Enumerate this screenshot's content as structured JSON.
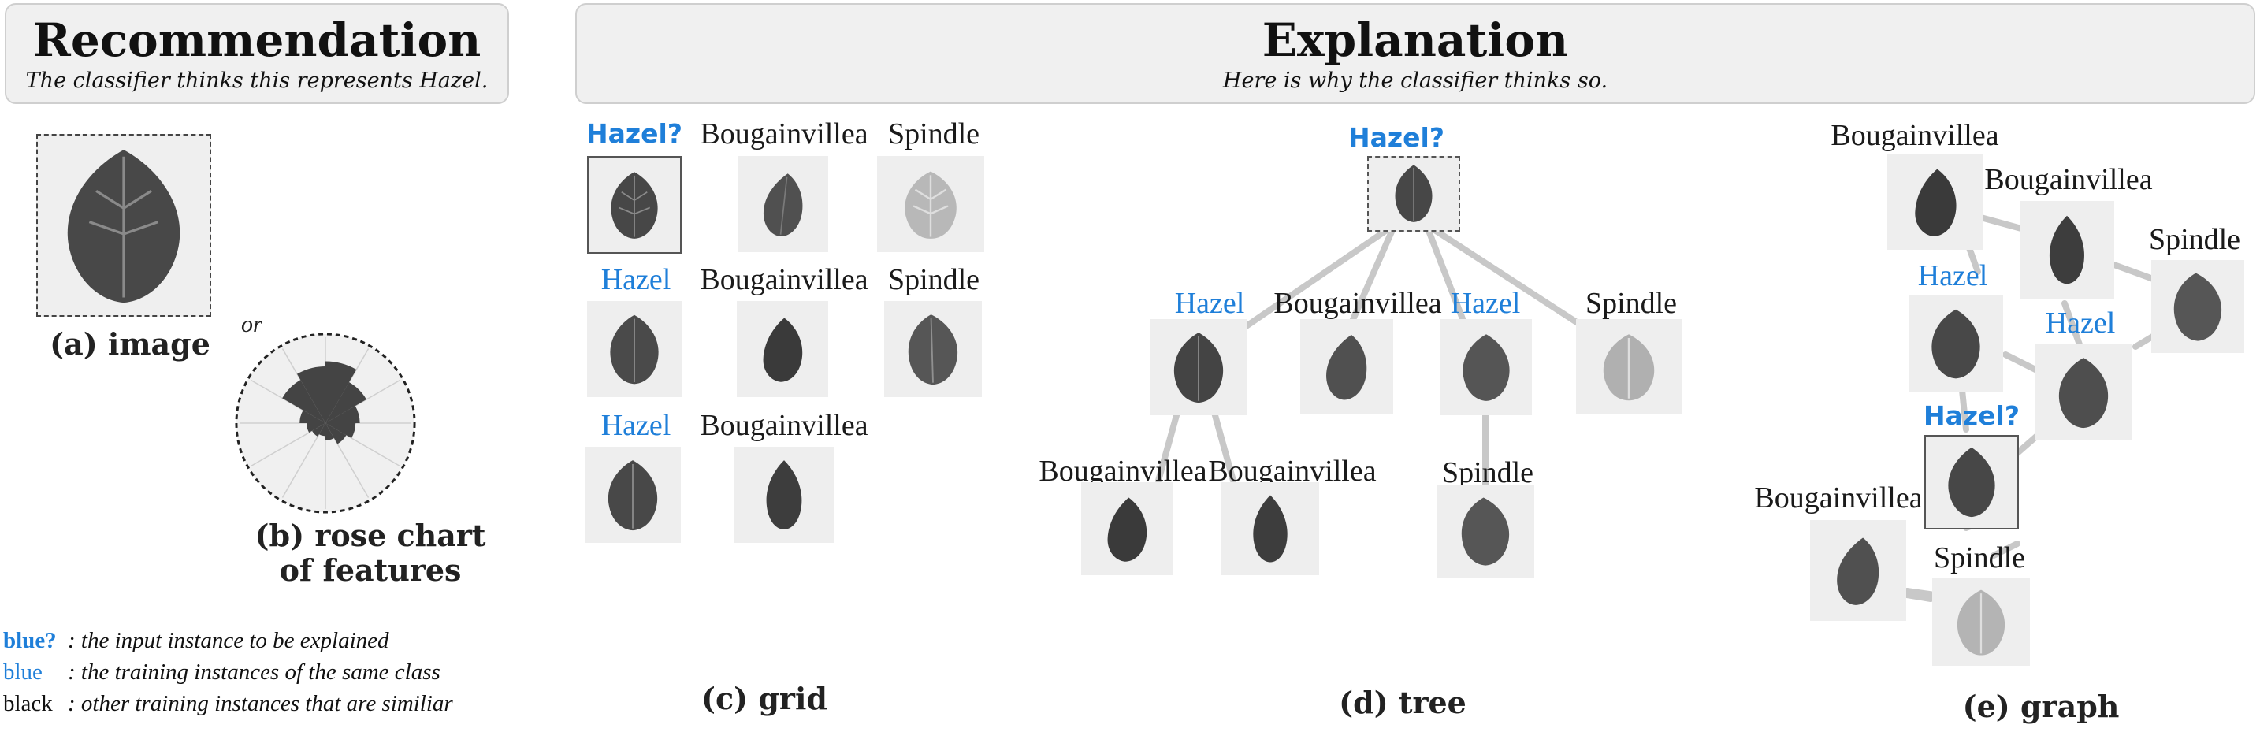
{
  "recommendation": {
    "title": "Recommendation",
    "subtitle": "The classifier thinks this represents Hazel."
  },
  "explanation": {
    "title": "Explanation",
    "subtitle": "Here is why the classifier thinks so."
  },
  "captions": {
    "image": "(a) image",
    "rose_line1": "(b) rose chart",
    "rose_line2": "of features",
    "or": "or",
    "grid": "(c) grid",
    "tree": "(d) tree",
    "graph": "(e) graph"
  },
  "legend": [
    {
      "key": "blue?",
      "text": ": the input instance to be explained"
    },
    {
      "key": "blue",
      "text": ": the training instances of the same class"
    },
    {
      "key": "black",
      "text": ": other training instances that are similiar"
    }
  ],
  "grid": {
    "labels": [
      "Hazel?",
      "Bougainvillea",
      "Spindle",
      "Hazel",
      "Bougainvillea",
      "Spindle",
      "Hazel",
      "Bougainvillea"
    ]
  },
  "tree": {
    "labels": [
      "Hazel?",
      "Hazel",
      "Bougainvillea",
      "Hazel",
      "Spindle",
      "Bougainvillea",
      "Bougainvillea",
      "Spindle"
    ]
  },
  "graph": {
    "labels": [
      "Bougainvillea",
      "Bougainvillea",
      "Spindle",
      "Hazel",
      "Hazel",
      "Hazel?",
      "Bougainvillea",
      "Spindle"
    ]
  },
  "rose": {
    "values": [
      0.72,
      0.55,
      0.4,
      0.35,
      0.28,
      0.2,
      0.15,
      0.18,
      0.22,
      0.3,
      0.58,
      0.66
    ]
  },
  "colors": {
    "accent": "#1f7fd9",
    "panel": "#f0f0f0",
    "edge": "#c8c8c8",
    "leaf_dark": "#3f3f3f"
  }
}
